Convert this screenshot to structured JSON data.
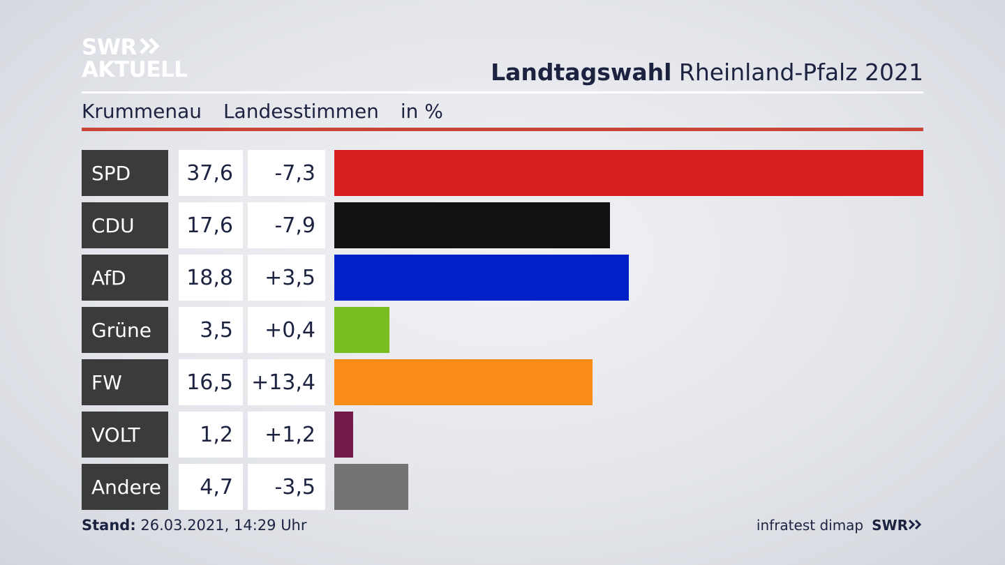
{
  "logo": {
    "line1": "SWR",
    "line2": "AKTUELL",
    "chevron": "double-chevron-right-icon"
  },
  "title": {
    "bold": "Landtagswahl",
    "rest": "Rheinland-Pfalz 2021"
  },
  "subtitle": {
    "place": "Krummenau",
    "type": "Landesstimmen",
    "unit": "in %"
  },
  "colors": {
    "accent_rule": "#c9453a",
    "party_label_bg": "#3b3b3b"
  },
  "chart_data": {
    "type": "bar",
    "orientation": "horizontal",
    "categories": [
      "SPD",
      "CDU",
      "AfD",
      "Grüne",
      "FW",
      "VOLT",
      "Andere"
    ],
    "values": [
      37.6,
      17.6,
      18.8,
      3.5,
      16.5,
      1.2,
      4.7
    ],
    "values_label": [
      "37,6",
      "17,6",
      "18,8",
      "3,5",
      "16,5",
      "1,2",
      "4,7"
    ],
    "diffs": [
      -7.3,
      -7.9,
      3.5,
      0.4,
      13.4,
      1.2,
      -3.5
    ],
    "diffs_label": [
      "-7,3",
      "-7,9",
      "+3,5",
      "+0,4",
      "+13,4",
      "+1,2",
      "-3,5"
    ],
    "colors": [
      "#d62020",
      "#121212",
      "#0021c8",
      "#78be1e",
      "#f98c19",
      "#741a48",
      "#737373"
    ],
    "xlim": [
      0,
      37.6
    ],
    "grid": false
  },
  "footer": {
    "stand_label": "Stand:",
    "stand_value": "26.03.2021, 14:29 Uhr",
    "source": "infratest dimap",
    "brand": "SWR"
  }
}
